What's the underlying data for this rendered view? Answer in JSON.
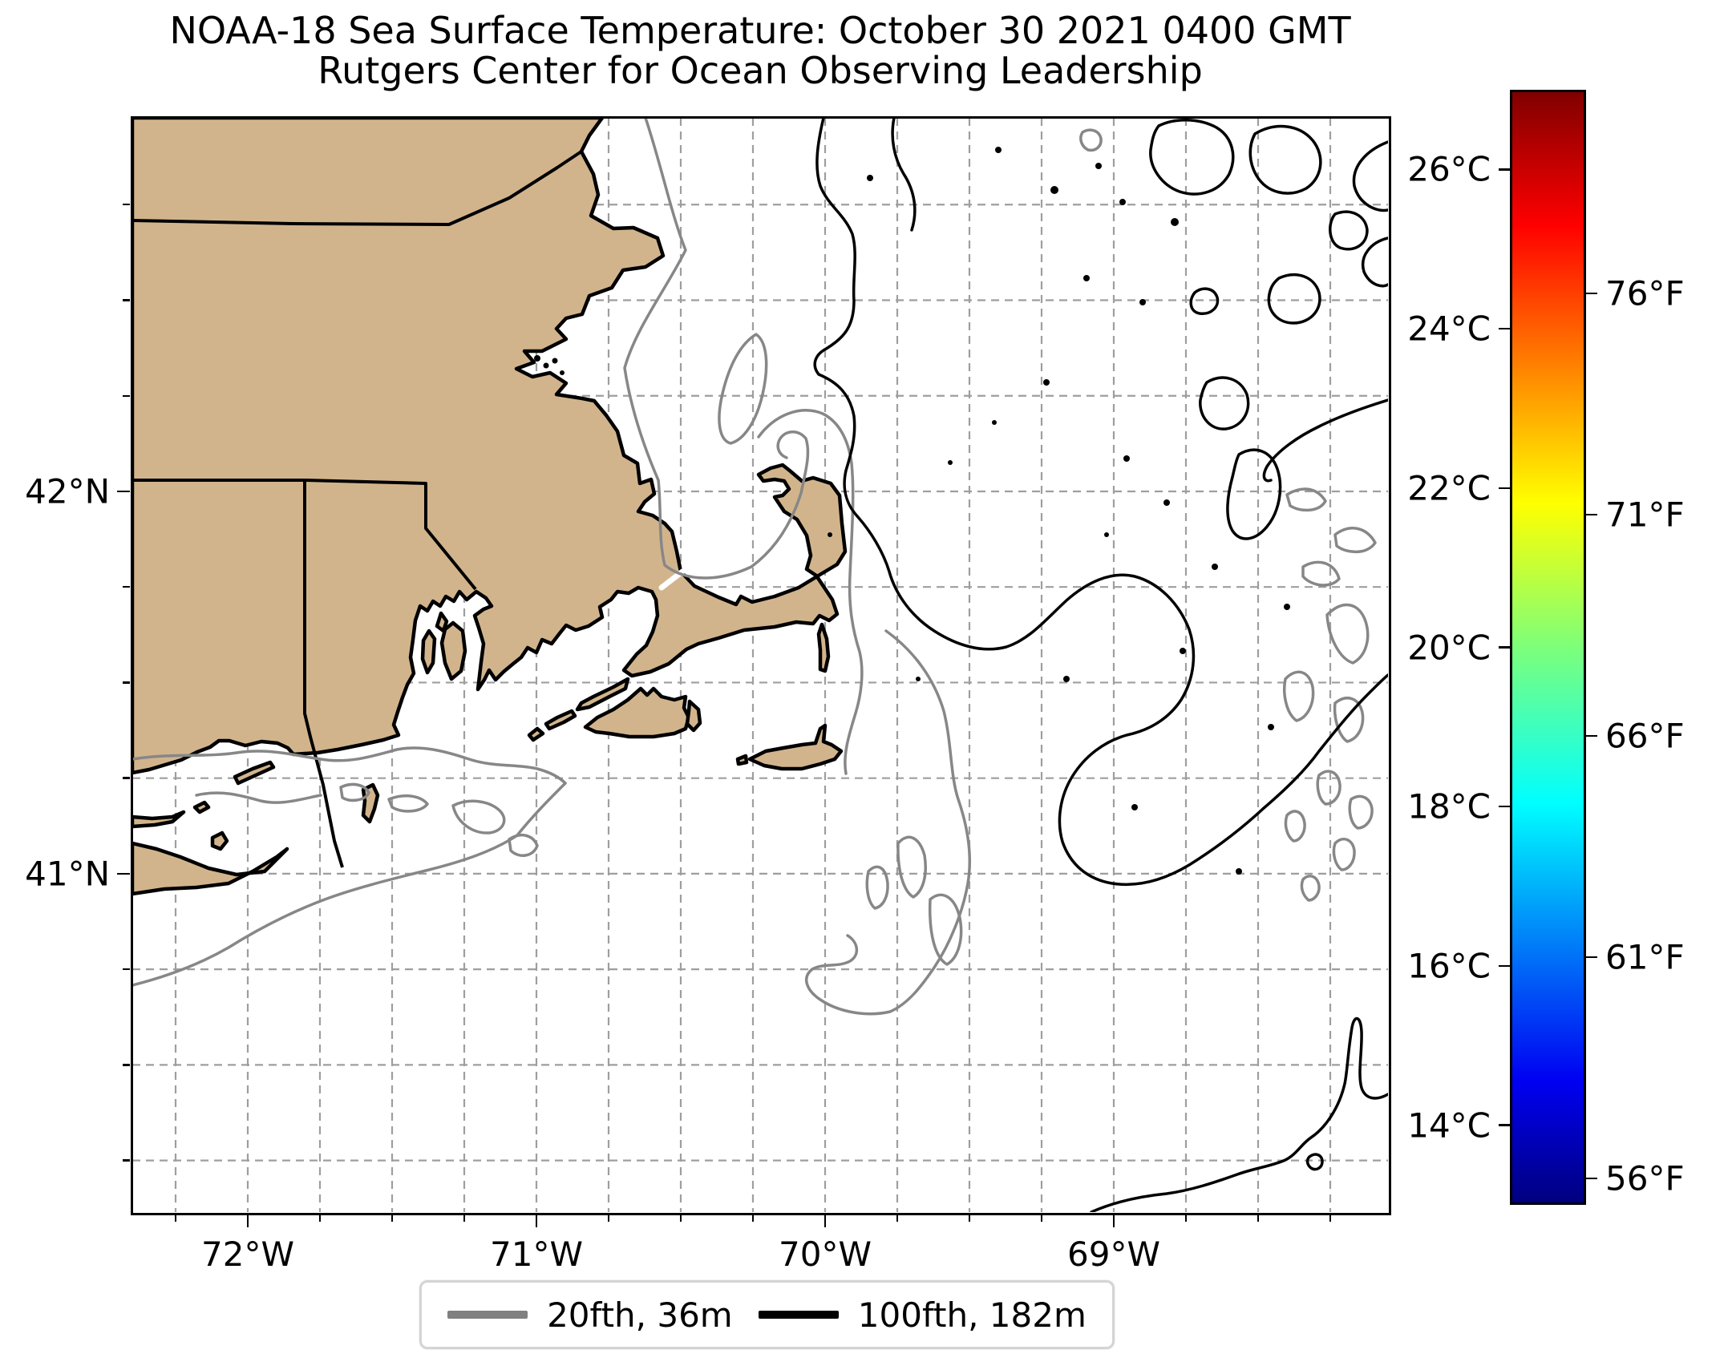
{
  "title": {
    "line1": "NOAA-18 Sea Surface Temperature: October 30 2021 0400 GMT",
    "line2": "Rutgers Center for Ocean Observing Leadership"
  },
  "axes": {
    "extent": {
      "lon": [
        -72.4,
        -68.05
      ],
      "lat": [
        40.115,
        42.977
      ]
    },
    "grid_step_deg": 0.25,
    "lat_ticks": [
      {
        "label": "42°N",
        "value": 42
      },
      {
        "label": "41°N",
        "value": 41
      }
    ],
    "lon_ticks": [
      {
        "label": "72°W",
        "value": -72
      },
      {
        "label": "71°W",
        "value": -71
      },
      {
        "label": "70°W",
        "value": -70
      },
      {
        "label": "69°W",
        "value": -69
      }
    ]
  },
  "colorbar": {
    "min_c": 13,
    "max_c": 27,
    "ticks_celsius": [
      {
        "label": "26°C",
        "value": 26
      },
      {
        "label": "24°C",
        "value": 24
      },
      {
        "label": "22°C",
        "value": 22
      },
      {
        "label": "20°C",
        "value": 20
      },
      {
        "label": "18°C",
        "value": 18
      },
      {
        "label": "16°C",
        "value": 16
      },
      {
        "label": "14°C",
        "value": 14
      }
    ],
    "ticks_fahrenheit": [
      {
        "label": "76°F",
        "value_c": 24.444
      },
      {
        "label": "71°F",
        "value_c": 21.667
      },
      {
        "label": "66°F",
        "value_c": 18.889
      },
      {
        "label": "61°F",
        "value_c": 16.111
      },
      {
        "label": "56°F",
        "value_c": 13.333
      }
    ]
  },
  "legend": {
    "entries": [
      {
        "label": "20fth, 36m",
        "color": "#808080"
      },
      {
        "label": "100fth, 182m",
        "color": "#000000"
      }
    ]
  },
  "colors": {
    "land": "#d2b48c",
    "ocean": "#ffffff",
    "contour_20fth": "#878787",
    "contour_100fth": "#000000",
    "gridline": "#9e9e9e",
    "colormap": [
      "#00007f",
      "#0000f2",
      "#00ffff",
      "#7dff7a",
      "#ffff00",
      "#ff0000",
      "#800000"
    ]
  }
}
